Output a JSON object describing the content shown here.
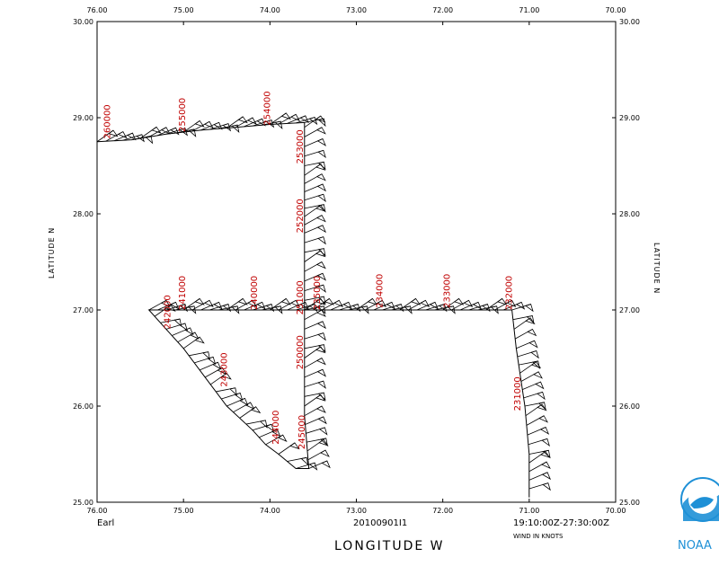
{
  "chart_data": {
    "type": "line",
    "title": "",
    "xlabel": "LONGITUDE   W",
    "ylabel": "LATITUDE   N",
    "xlim": [
      76.0,
      70.0
    ],
    "ylim": [
      25.0,
      30.0
    ],
    "x_ticks": [
      "76.00",
      "75.00",
      "74.00",
      "73.00",
      "72.00",
      "71.00",
      "70.00"
    ],
    "y_ticks": [
      "25.00",
      "26.00",
      "27.00",
      "28.00",
      "29.00",
      "30.00"
    ],
    "grid": false,
    "storm_name": "Earl",
    "mission_id": "20100901I1",
    "time_range": "19:10:00Z-27:30:00Z",
    "wind_units_label": "WIND IN KNOTS",
    "flight_track": [
      [
        76.0,
        28.75
      ],
      [
        75.6,
        28.77
      ],
      [
        75.2,
        28.83
      ],
      [
        74.8,
        28.87
      ],
      [
        74.4,
        28.9
      ],
      [
        74.0,
        28.93
      ],
      [
        73.6,
        28.95
      ],
      [
        73.6,
        28.9
      ],
      [
        73.6,
        28.4
      ],
      [
        73.6,
        27.8
      ],
      [
        73.6,
        27.3
      ],
      [
        73.6,
        26.9
      ],
      [
        73.6,
        26.4
      ],
      [
        73.6,
        25.9
      ],
      [
        73.55,
        25.35
      ],
      [
        73.7,
        25.35
      ],
      [
        73.9,
        25.5
      ],
      [
        74.05,
        25.6
      ],
      [
        74.2,
        25.75
      ],
      [
        74.5,
        26.0
      ],
      [
        74.75,
        26.3
      ],
      [
        75.0,
        26.6
      ],
      [
        75.2,
        26.8
      ],
      [
        75.4,
        27.0
      ],
      [
        75.0,
        27.0
      ],
      [
        74.5,
        27.0
      ],
      [
        74.0,
        27.0
      ],
      [
        73.5,
        27.0
      ],
      [
        73.0,
        27.0
      ],
      [
        72.5,
        27.0
      ],
      [
        72.0,
        27.0
      ],
      [
        71.5,
        27.0
      ],
      [
        71.2,
        27.0
      ],
      [
        71.15,
        26.6
      ],
      [
        71.05,
        26.0
      ],
      [
        71.0,
        25.5
      ],
      [
        71.0,
        25.05
      ]
    ],
    "time_labels": [
      {
        "text": "260000",
        "lon": 75.85,
        "lat": 28.78
      },
      {
        "text": "255000",
        "lon": 74.98,
        "lat": 28.85
      },
      {
        "text": "254000",
        "lon": 74.0,
        "lat": 28.92
      },
      {
        "text": "253000",
        "lon": 73.62,
        "lat": 28.52
      },
      {
        "text": "252000",
        "lon": 73.62,
        "lat": 27.8
      },
      {
        "text": "251000",
        "lon": 73.62,
        "lat": 26.95
      },
      {
        "text": "250000",
        "lon": 73.62,
        "lat": 26.38
      },
      {
        "text": "245000",
        "lon": 73.6,
        "lat": 25.55
      },
      {
        "text": "244000",
        "lon": 73.9,
        "lat": 25.6
      },
      {
        "text": "243000",
        "lon": 74.5,
        "lat": 26.2
      },
      {
        "text": "242000",
        "lon": 75.15,
        "lat": 26.8
      },
      {
        "text": "241000",
        "lon": 74.98,
        "lat": 27.0
      },
      {
        "text": "240000",
        "lon": 74.15,
        "lat": 27.0
      },
      {
        "text": "235000",
        "lon": 73.42,
        "lat": 27.0
      },
      {
        "text": "234000",
        "lon": 72.7,
        "lat": 27.02
      },
      {
        "text": "233000",
        "lon": 71.92,
        "lat": 27.02
      },
      {
        "text": "232000",
        "lon": 71.2,
        "lat": 27.0
      },
      {
        "text": "231000",
        "lon": 71.1,
        "lat": 25.95
      }
    ],
    "logo_text": "NOAA"
  }
}
